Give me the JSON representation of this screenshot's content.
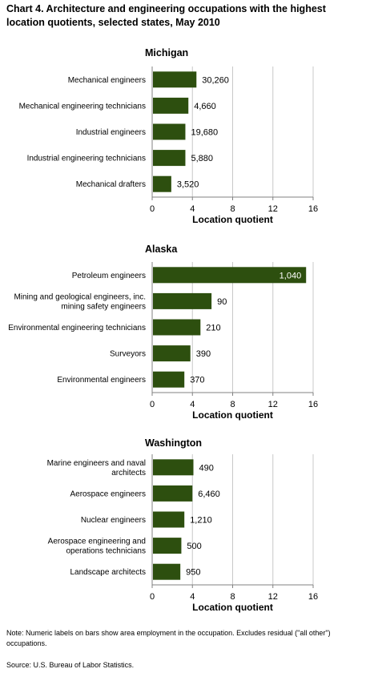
{
  "title": "Chart 4. Architecture and engineering occupations with the highest location quotients, selected states, May 2010",
  "colors": {
    "bar": "#2d4f0f",
    "grid": "#c8c8c8",
    "axis": "#808080"
  },
  "chart_data": [
    {
      "type": "bar",
      "orientation": "horizontal",
      "title": "Michigan",
      "xlabel": "Location quotient",
      "xlim": [
        0,
        16
      ],
      "xticks": [
        0,
        4,
        8,
        12,
        16
      ],
      "grid": true,
      "categories": [
        [
          "Mechanical engineers"
        ],
        [
          "Mechanical engineering technicians"
        ],
        [
          "Industrial engineers"
        ],
        [
          "Industrial engineering technicians"
        ],
        [
          "Mechanical drafters"
        ]
      ],
      "values": [
        4.4,
        3.6,
        3.3,
        3.3,
        1.9
      ],
      "data_labels": [
        "30,260",
        "4,660",
        "19,680",
        "5,880",
        "3,520"
      ]
    },
    {
      "type": "bar",
      "orientation": "horizontal",
      "title": "Alaska",
      "xlabel": "Location quotient",
      "xlim": [
        0,
        16
      ],
      "xticks": [
        0,
        4,
        8,
        12,
        16
      ],
      "grid": true,
      "categories": [
        [
          "Petroleum engineers"
        ],
        [
          "Mining and geological engineers, inc.",
          "mining safety engineers"
        ],
        [
          "Environmental engineering technicians"
        ],
        [
          "Surveyors"
        ],
        [
          "Environmental engineers"
        ]
      ],
      "values": [
        15.3,
        5.9,
        4.8,
        3.8,
        3.2
      ],
      "data_labels": [
        "1,040",
        "90",
        "210",
        "390",
        "370"
      ]
    },
    {
      "type": "bar",
      "orientation": "horizontal",
      "title": "Washington",
      "xlabel": "Location quotient",
      "xlim": [
        0,
        16
      ],
      "xticks": [
        0,
        4,
        8,
        12,
        16
      ],
      "grid": true,
      "categories": [
        [
          "Marine engineers and naval",
          "architects"
        ],
        [
          "Aerospace engineers"
        ],
        [
          "Nuclear engineers"
        ],
        [
          "Aerospace engineering and",
          "operations technicians"
        ],
        [
          "Landscape architects"
        ]
      ],
      "values": [
        4.1,
        4.0,
        3.2,
        2.9,
        2.8
      ],
      "data_labels": [
        "490",
        "6,460",
        "1,210",
        "500",
        "950"
      ]
    }
  ],
  "note": "Note: Numeric labels on bars show area employment in the occupation. Excludes residual (\"all other\") occupations.",
  "source": "Source: U.S. Bureau of Labor Statistics."
}
